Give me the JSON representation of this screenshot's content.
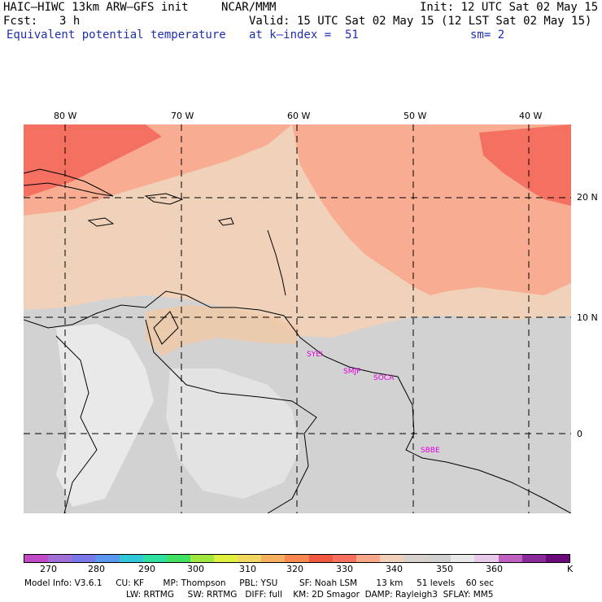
{
  "header": {
    "model": "HAIC–HIWC 13km ARW–GFS init",
    "center": "NCAR/MMM",
    "init": "Init: 12 UTC Sat 02 May 15",
    "fcst_label": "Fcst:",
    "fcst_value": "3 h",
    "valid": "Valid: 15 UTC Sat 02 May 15 (12 LST Sat 02 May 15)",
    "field": "Equivalent potential temperature",
    "level": "at k–index =  51",
    "smoothing": "sm= 2"
  },
  "axes": {
    "lon_labels": [
      "80 W",
      "70 W",
      "60 W",
      "50 W",
      "40 W"
    ],
    "lat_labels": [
      "20 N",
      "10 N",
      "0"
    ]
  },
  "stations": [
    "SYEI",
    "SMJP",
    "SOCA",
    "SBBE"
  ],
  "colorbar": {
    "colors": [
      "#c04ac8",
      "#a070d8",
      "#7a78e8",
      "#5a98f0",
      "#30c8d8",
      "#30e0a0",
      "#40e060",
      "#a0e840",
      "#e0f040",
      "#f0d860",
      "#f8b060",
      "#f88850",
      "#f05840",
      "#f87060",
      "#f8a888",
      "#f0d0b8",
      "#d8d0cc",
      "#d0d0d0",
      "#e8e8e8",
      "#e8c8e8",
      "#c060c0",
      "#8a2a9a",
      "#6a0a7a"
    ],
    "tick_labels": [
      "270",
      "280",
      "290",
      "300",
      "310",
      "320",
      "330",
      "340",
      "350",
      "360",
      "K"
    ]
  },
  "footer": {
    "line1": "Model Info: V3.6.1     CU: KF       MP: Thompson     PBL: YSU        SF: Noah LSM       13 km     51 levels    60 sec",
    "line2": "LW: RRTMG     SW: RRTMG   DIFF: full    KM: 2D Smagor  DAMP: Rayleigh3  SFLAY: MM5"
  }
}
